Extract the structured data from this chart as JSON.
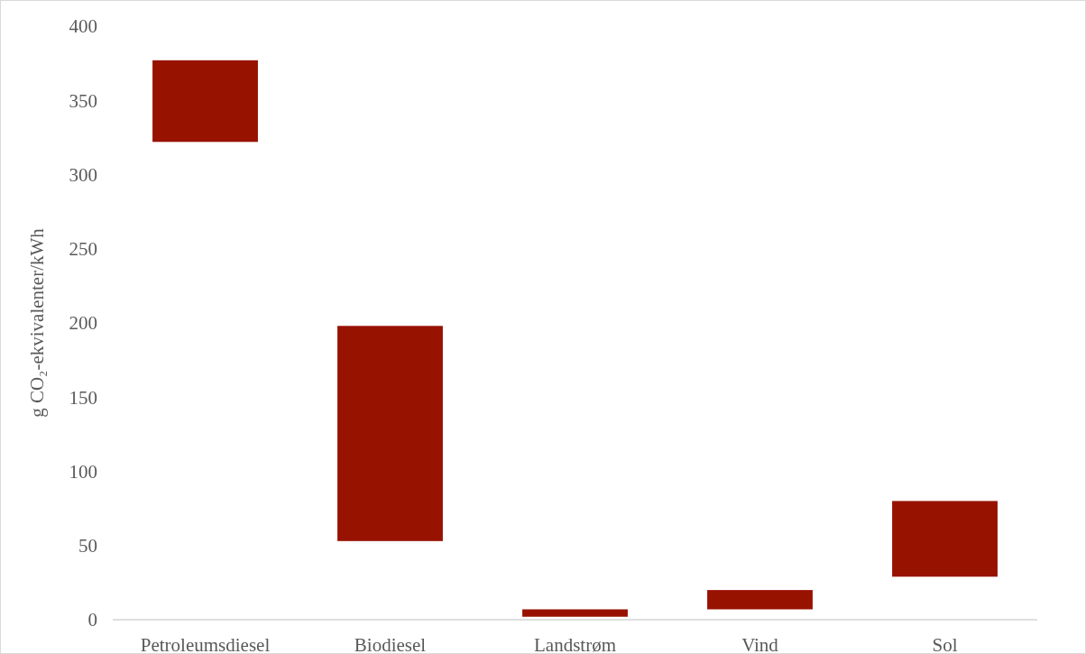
{
  "chart_data": {
    "type": "bar",
    "ylabel": "g CO₂-ekvivalenter/kWh",
    "categories": [
      "Petroleumsdiesel",
      "Biodiesel",
      "Landstrøm",
      "Vind",
      "Sol"
    ],
    "base": [
      322,
      53,
      2,
      7,
      29
    ],
    "values": [
      55,
      145,
      5,
      13,
      51
    ],
    "color": "#981200",
    "ylim": [
      0,
      400
    ],
    "yticks": [
      0,
      50,
      100,
      150,
      200,
      250,
      300,
      350,
      400
    ],
    "grid": false
  }
}
